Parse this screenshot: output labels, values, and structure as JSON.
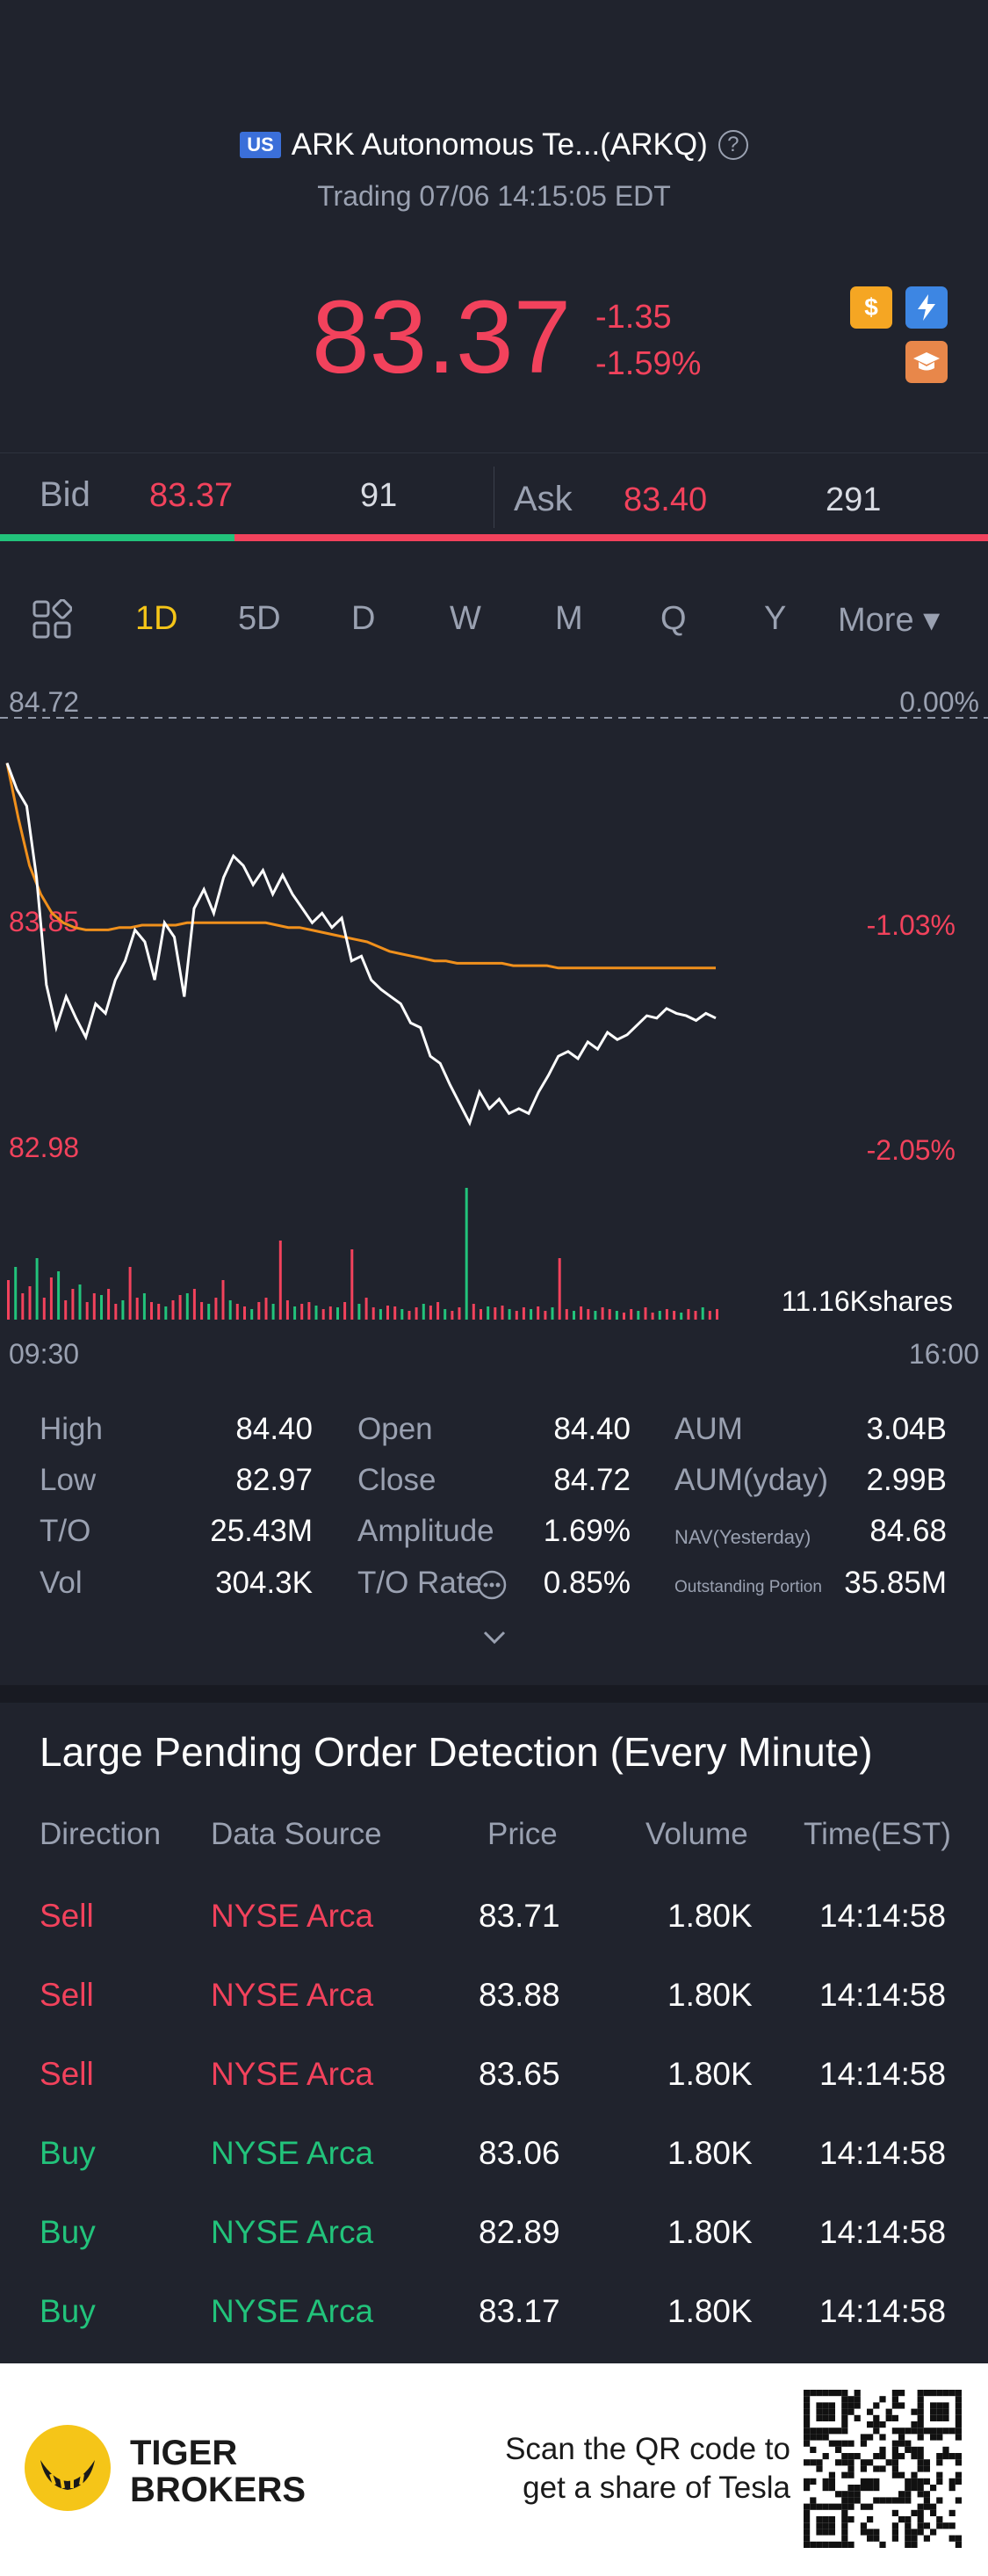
{
  "header": {
    "market_badge": "US",
    "title": "ARK Autonomous Te...(ARKQ)",
    "help_glyph": "?",
    "status": "Trading 07/06 14:15:05 EDT",
    "price": "83.37",
    "change": "-1.35",
    "change_pct": "-1.59%",
    "icons": [
      "dollar-icon",
      "flash-icon",
      "education-icon"
    ]
  },
  "quote": {
    "bid_label": "Bid",
    "bid_price": "83.37",
    "bid_size": "91",
    "ask_label": "Ask",
    "ask_price": "83.40",
    "ask_size": "291",
    "bid_ratio": 0.237
  },
  "tabs": {
    "items": [
      "1D",
      "5D",
      "D",
      "W",
      "M",
      "Q",
      "Y"
    ],
    "active": "1D",
    "more": "More ▾"
  },
  "chart_labels": {
    "top_price": "84.72",
    "top_pct": "0.00%",
    "mid_price": "83.85",
    "mid_pct": "-1.03%",
    "low_price": "82.98",
    "low_pct": "-2.05%",
    "volume": "11.16Kshares",
    "start_time": "09:30",
    "end_time": "16:00"
  },
  "chart_data": {
    "type": "line",
    "x_range": [
      "09:30",
      "16:00"
    ],
    "ylim": [
      82.98,
      84.72
    ],
    "series": [
      {
        "values": [
          84.53,
          84.42,
          84.35,
          84.05,
          83.6,
          83.42,
          83.55,
          83.46,
          83.38,
          83.52,
          83.48,
          83.62,
          83.7,
          83.83,
          83.78,
          83.62,
          83.86,
          83.8,
          83.55,
          83.92,
          84.0,
          83.9,
          84.05,
          84.14,
          84.1,
          84.02,
          84.08,
          83.98,
          84.06,
          83.98,
          83.92,
          83.86,
          83.9,
          83.84,
          83.88,
          83.7,
          83.72,
          83.62,
          83.58,
          83.55,
          83.52,
          83.44,
          83.42,
          83.3,
          83.27,
          83.18,
          83.1,
          83.02,
          83.15,
          83.08,
          83.12,
          83.06,
          83.08,
          83.06,
          83.15,
          83.22,
          83.3,
          83.32,
          83.29,
          83.36,
          83.33,
          83.4,
          83.37,
          83.39,
          83.43,
          83.47,
          83.46,
          83.5,
          83.48,
          83.47,
          83.45,
          83.48,
          83.46
        ]
      },
      {
        "values": [
          84.53,
          84.3,
          84.1,
          83.98,
          83.9,
          83.86,
          83.84,
          83.83,
          83.83,
          83.83,
          83.84,
          83.84,
          83.85,
          83.85,
          83.85,
          83.85,
          83.86,
          83.86,
          83.86,
          83.86,
          83.86,
          83.86,
          83.86,
          83.86,
          83.85,
          83.84,
          83.84,
          83.83,
          83.82,
          83.81,
          83.8,
          83.79,
          83.78,
          83.76,
          83.74,
          83.73,
          83.72,
          83.71,
          83.7,
          83.7,
          83.69,
          83.69,
          83.69,
          83.69,
          83.69,
          83.68,
          83.68,
          83.68,
          83.68,
          83.67,
          83.67,
          83.67,
          83.67,
          83.67,
          83.67,
          83.67,
          83.67,
          83.67,
          83.67,
          83.67,
          83.67,
          83.67,
          83.67,
          83.67
        ]
      }
    ],
    "volume_bars": [
      45,
      60,
      30,
      38,
      70,
      25,
      48,
      55,
      22,
      35,
      40,
      20,
      30,
      28,
      35,
      18,
      22,
      60,
      25,
      30,
      20,
      18,
      15,
      22,
      28,
      30,
      35,
      20,
      18,
      25,
      45,
      22,
      18,
      15,
      12,
      20,
      25,
      18,
      90,
      22,
      15,
      18,
      20,
      16,
      12,
      15,
      14,
      20,
      80,
      18,
      25,
      14,
      12,
      16,
      15,
      12,
      10,
      14,
      18,
      16,
      20,
      12,
      10,
      14,
      150,
      18,
      12,
      15,
      14,
      16,
      12,
      10,
      14,
      12,
      15,
      10,
      14,
      70,
      12,
      10,
      15,
      12,
      10,
      14,
      12,
      10,
      8,
      12,
      10,
      14,
      8,
      10,
      12,
      10,
      8,
      12,
      10,
      14,
      10,
      12
    ]
  },
  "stats": [
    [
      [
        "High",
        "84.40"
      ],
      [
        "Open",
        "84.40"
      ],
      [
        "AUM",
        "3.04B"
      ]
    ],
    [
      [
        "Low",
        "82.97"
      ],
      [
        "Close",
        "84.72"
      ],
      [
        "AUM(yday)",
        "2.99B"
      ]
    ],
    [
      [
        "T/O",
        "25.43M"
      ],
      [
        "Amplitude",
        "1.69%"
      ],
      [
        "NAV(Yesterday)",
        "84.68"
      ]
    ],
    [
      [
        "Vol",
        "304.3K"
      ],
      [
        "T/O Rate",
        "0.85%"
      ],
      [
        "Outstanding Portion",
        "35.85M"
      ]
    ]
  ],
  "pending": {
    "title": "Large Pending Order Detection (Every Minute)",
    "headers": [
      "Direction",
      "Data Source",
      "Price",
      "Volume",
      "Time(EST)"
    ],
    "rows": [
      [
        "Sell",
        "NYSE Arca",
        "83.71",
        "1.80K",
        "14:14:58"
      ],
      [
        "Sell",
        "NYSE Arca",
        "83.88",
        "1.80K",
        "14:14:58"
      ],
      [
        "Sell",
        "NYSE Arca",
        "83.65",
        "1.80K",
        "14:14:58"
      ],
      [
        "Buy",
        "NYSE Arca",
        "83.06",
        "1.80K",
        "14:14:58"
      ],
      [
        "Buy",
        "NYSE Arca",
        "82.89",
        "1.80K",
        "14:14:58"
      ],
      [
        "Buy",
        "NYSE Arca",
        "83.17",
        "1.80K",
        "14:14:58"
      ]
    ]
  },
  "footer": {
    "brand_line1": "TIGER",
    "brand_line2": "BROKERS",
    "scan_line1": "Scan the QR code to",
    "scan_line2": "get a share of Tesla"
  },
  "colors": {
    "background": "#20232d",
    "down": "#f2425c",
    "up": "#22c37b",
    "active_tab": "#f5c518",
    "avg_line": "#f0901c"
  }
}
